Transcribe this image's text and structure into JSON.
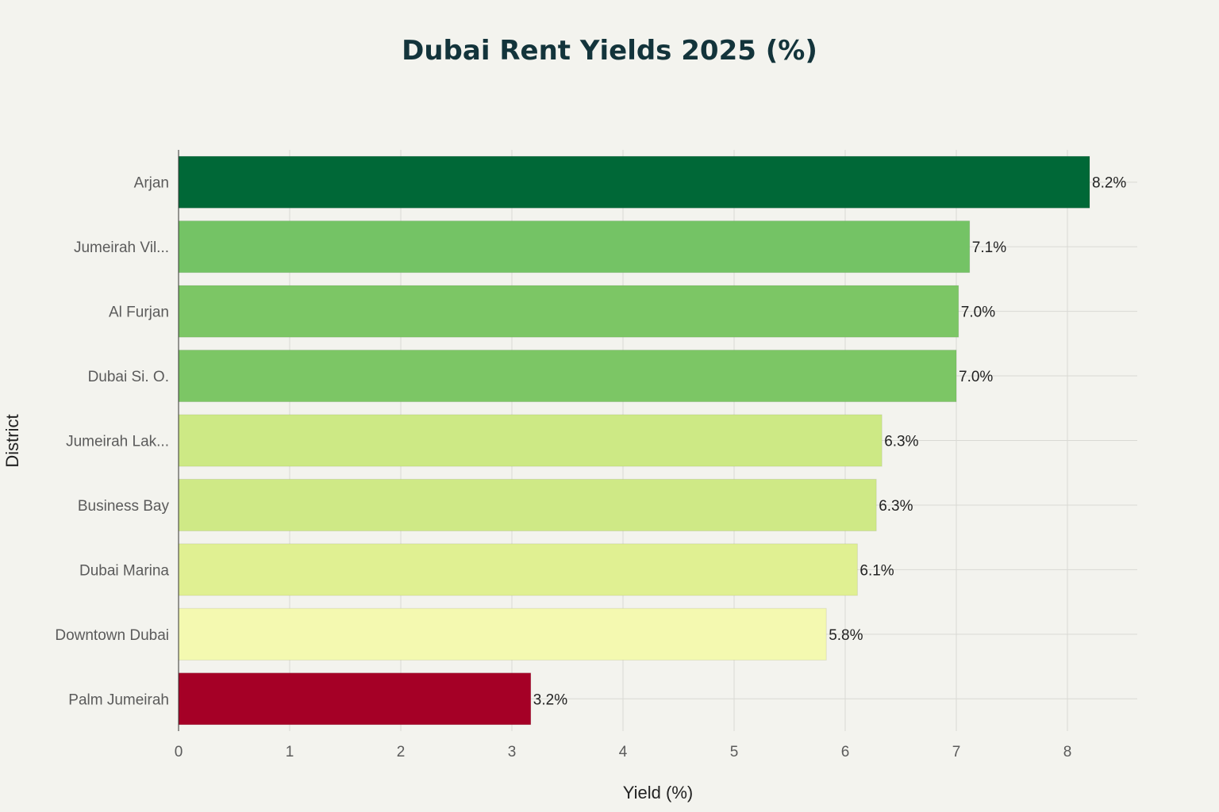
{
  "chart_data": {
    "type": "bar",
    "orientation": "horizontal",
    "title": "Dubai Rent Yields 2025 (%)",
    "xlabel": "Yield (%)",
    "ylabel": "District",
    "xlim": [
      0,
      8.6
    ],
    "xticks": [
      "0",
      "1",
      "2",
      "3",
      "4",
      "5",
      "6",
      "7",
      "8"
    ],
    "grid": true,
    "categories": [
      "Arjan",
      "Jumeirah Vil...",
      "Al Furjan",
      "Dubai Si. O.",
      "Jumeirah Lak...",
      "Business Bay",
      "Dubai Marina",
      "Downtown Dubai",
      "Palm Jumeirah"
    ],
    "values": [
      8.2,
      7.12,
      7.02,
      7.0,
      6.33,
      6.28,
      6.11,
      5.83,
      3.17
    ],
    "value_labels": [
      "8.2%",
      "7.1%",
      "7.0%",
      "7.0%",
      "6.3%",
      "6.3%",
      "6.1%",
      "5.8%",
      "3.2%"
    ],
    "colors": [
      "#006837",
      "#74c365",
      "#7cc665",
      "#7cc665",
      "#cde985",
      "#cfe986",
      "#e0f092",
      "#f4f9b0",
      "#a50026"
    ]
  }
}
